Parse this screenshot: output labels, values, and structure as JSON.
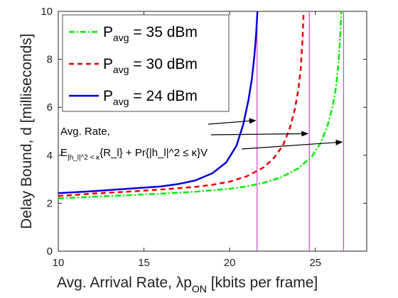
{
  "chart_data": {
    "type": "line",
    "xlabel_main": "Avg. Arrival Rate, ",
    "xlabel_lambda": "λp",
    "xlabel_sub": "ON",
    "xlabel_units": " [kbits per frame]",
    "ylabel": "Delay Bound, d [milliseconds]",
    "xlim": [
      10,
      28
    ],
    "ylim": [
      0,
      10
    ],
    "x_ticks": [
      "10",
      "15",
      "20",
      "25"
    ],
    "y_ticks": [
      "0",
      "2",
      "4",
      "6",
      "8",
      "10"
    ],
    "grid": false,
    "legend_position": "top-left",
    "series": [
      {
        "name": "P_avg = 35 dBm",
        "legend_main": "P",
        "legend_sub": "avg",
        "legend_rest": " = 35 dBm",
        "color": "#00ee00",
        "style": "dash-dot",
        "x": [
          10,
          12,
          14,
          16,
          18,
          20,
          21,
          22,
          23,
          24,
          24.8,
          25.3,
          25.7,
          26.0,
          26.2,
          26.35,
          26.45,
          26.52
        ],
        "y": [
          2.2,
          2.27,
          2.33,
          2.4,
          2.48,
          2.6,
          2.7,
          2.85,
          3.08,
          3.45,
          3.95,
          4.5,
          5.2,
          6.0,
          6.8,
          7.8,
          8.9,
          10
        ]
      },
      {
        "name": "P_avg = 30 dBm",
        "legend_main": "P",
        "legend_sub": "avg",
        "legend_rest": " = 30 dBm",
        "color": "#ee0000",
        "style": "dashed",
        "x": [
          10,
          12,
          14,
          16,
          18,
          19,
          20,
          21,
          22,
          22.6,
          23.1,
          23.5,
          23.8,
          24.0,
          24.15,
          24.25,
          24.32
        ],
        "y": [
          2.3,
          2.4,
          2.48,
          2.57,
          2.68,
          2.77,
          2.9,
          3.12,
          3.5,
          3.9,
          4.4,
          5.1,
          5.9,
          6.7,
          7.6,
          8.8,
          10
        ]
      },
      {
        "name": "P_avg = 24 dBm",
        "legend_main": "P",
        "legend_sub": "avg",
        "legend_rest": " = 24 dBm",
        "color": "#0000dd",
        "style": "solid",
        "x": [
          10,
          12,
          14,
          16,
          17,
          18,
          19,
          19.8,
          20.4,
          20.8,
          21.1,
          21.3,
          21.45,
          21.55,
          21.62
        ],
        "y": [
          2.42,
          2.5,
          2.6,
          2.7,
          2.8,
          2.95,
          3.25,
          3.7,
          4.4,
          5.3,
          6.3,
          7.2,
          8.2,
          9.1,
          10
        ]
      }
    ],
    "vertical_lines": {
      "color": "#cc44cc",
      "x": [
        21.6,
        24.65,
        26.65
      ]
    },
    "annotation": {
      "line1": "Avg. Rate,",
      "line2_E": "E",
      "line2_sub": "|h_l|^2 < κ",
      "line2_R": "{R_l} + Pr{|h_l|^2 ≤ κ}",
      "line2_tail": "V",
      "arrow_targets": [
        {
          "x": 21.6,
          "y": 5.45
        },
        {
          "x": 24.65,
          "y": 4.9
        },
        {
          "x": 26.65,
          "y": 4.55
        }
      ]
    }
  }
}
